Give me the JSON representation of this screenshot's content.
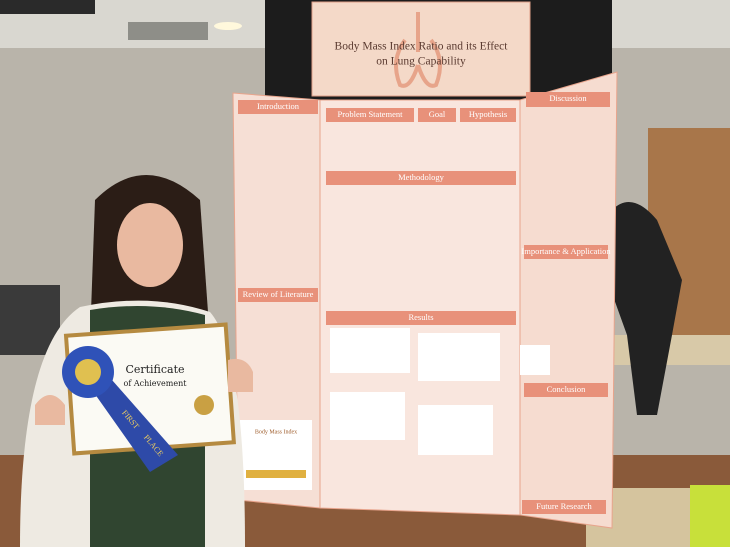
{
  "poster": {
    "title_lines": [
      "Body Mass Index Ratio and its Effect",
      "on Lung Capability"
    ],
    "left_panel": [
      "Introduction",
      "Review of Literature"
    ],
    "center_panel": [
      "Problem Statement",
      "Goal",
      "Hypothesis",
      "Methodology",
      "Results"
    ],
    "right_panel": [
      "Discussion",
      "Importance & Application",
      "Conclusion",
      "Future Research"
    ],
    "chart_label": "Body Mass Index"
  },
  "certificate": {
    "title": "Certificate",
    "subtitle": "of Achievement"
  },
  "ribbon": [
    "FIRST",
    "PLACE"
  ]
}
